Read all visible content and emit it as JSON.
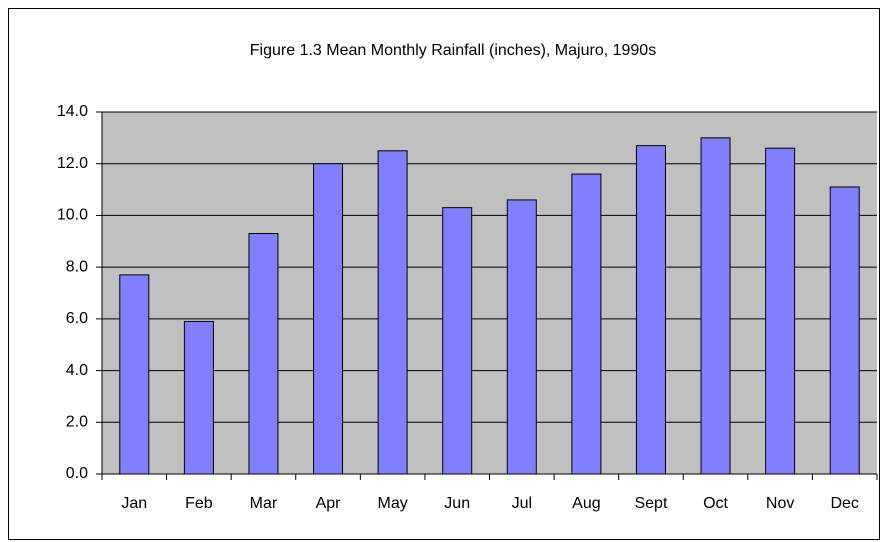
{
  "chart_data": {
    "type": "bar",
    "title": "Figure 1.3 Mean Monthly Rainfall (inches), Majuro, 1990s",
    "categories": [
      "Jan",
      "Feb",
      "Mar",
      "Apr",
      "May",
      "Jun",
      "Jul",
      "Aug",
      "Sept",
      "Oct",
      "Nov",
      "Dec"
    ],
    "values": [
      7.7,
      5.9,
      9.3,
      12.0,
      12.5,
      10.3,
      10.6,
      11.6,
      12.7,
      13.0,
      12.6,
      11.1
    ],
    "color": "#8080ff",
    "ylim": [
      0,
      14
    ],
    "yticks": [
      {
        "value": 0,
        "label": "0.0"
      },
      {
        "value": 2,
        "label": "2.0"
      },
      {
        "value": 4,
        "label": "4.0"
      },
      {
        "value": 6,
        "label": "6.0"
      },
      {
        "value": 8,
        "label": "8.0"
      },
      {
        "value": 10,
        "label": "10.0"
      },
      {
        "value": 12,
        "label": "12.0"
      },
      {
        "value": 14,
        "label": "14.0"
      }
    ],
    "grid": true
  }
}
